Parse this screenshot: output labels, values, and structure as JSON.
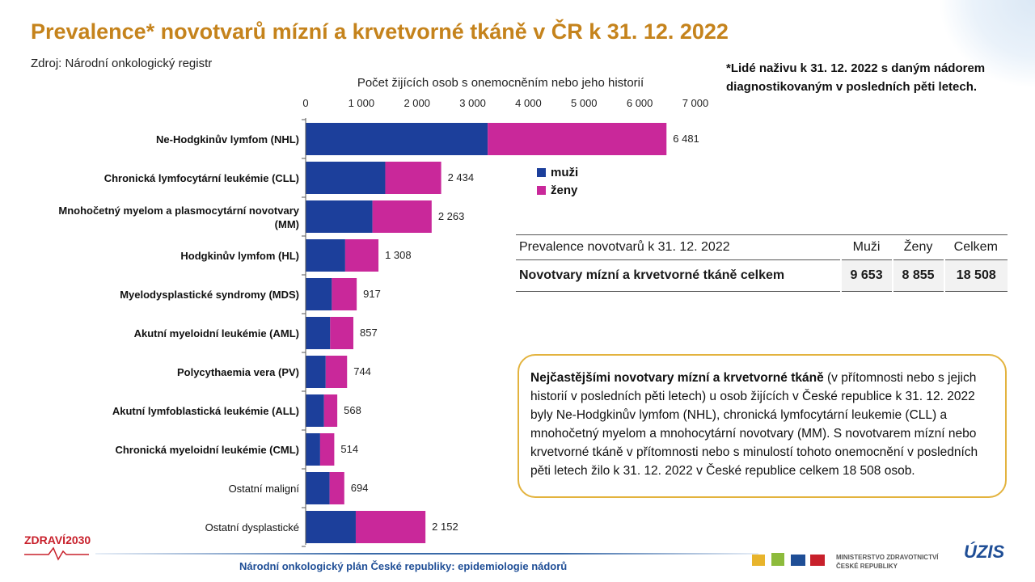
{
  "title": "Prevalence* novotvarů mízní a krvetvorné tkáně v ČR k 31. 12. 2022",
  "source": "Zdroj: Národní onkologický registr",
  "footnote": "*Lidé naživu k 31. 12. 2022 s daným nádorem diagnostikovaným v posledních pěti letech.",
  "chart_data": {
    "type": "bar",
    "orientation": "horizontal",
    "stacked": true,
    "title": "Počet žijících osob s onemocněním nebo jeho historií",
    "xlim": [
      0,
      7000
    ],
    "x_ticks": [
      "0",
      "1 000",
      "2 000",
      "3 000",
      "4 000",
      "5 000",
      "6 000",
      "7 000"
    ],
    "x_tick_values": [
      0,
      1000,
      2000,
      3000,
      4000,
      5000,
      6000,
      7000
    ],
    "categories": [
      "Ne-Hodgkinův lymfom (NHL)",
      "Chronická lymfocytární leukémie (CLL)",
      "Mnohočetný myelom a plasmocytární novotvary (MM)",
      "Hodgkinův lymfom (HL)",
      "Myelodysplastické syndromy (MDS)",
      "Akutní myeloidní leukémie (AML)",
      "Polycythaemia vera (PV)",
      "Akutní lymfoblastická leukémie (ALL)",
      "Chronická myeloidní leukémie (CML)",
      "Ostatní maligní",
      "Ostatní dysplastické"
    ],
    "category_bold": [
      true,
      true,
      true,
      true,
      true,
      true,
      true,
      true,
      true,
      false,
      false
    ],
    "series": [
      {
        "name": "muži",
        "color": "#1c3f9b",
        "values": [
          3270,
          1430,
          1200,
          710,
          470,
          440,
          360,
          330,
          260,
          430,
          900
        ]
      },
      {
        "name": "ženy",
        "color": "#c9289a",
        "values": [
          3211,
          1004,
          1063,
          598,
          447,
          417,
          384,
          238,
          254,
          264,
          1252
        ]
      }
    ],
    "totals": [
      6481,
      2434,
      2263,
      1308,
      917,
      857,
      744,
      568,
      514,
      694,
      2152
    ],
    "total_labels": [
      "6 481",
      "2 434",
      "2 263",
      "1 308",
      "917",
      "857",
      "744",
      "568",
      "514",
      "694",
      "2 152"
    ],
    "legend_position": "right"
  },
  "legend": {
    "male": "muži",
    "female": "ženy"
  },
  "summary_table": {
    "headers": [
      "Prevalence novotvarů k 31. 12. 2022",
      "Muži",
      "Ženy",
      "Celkem"
    ],
    "row_label": "Novotvary mízní a krvetvorné tkáně celkem",
    "values": [
      "9 653",
      "8 855",
      "18 508"
    ]
  },
  "callout": {
    "bold": "Nejčastějšími novotvary mízní a krvetvorné tkáně",
    "text": " (v přítomnosti nebo s jejich historií v posledních pěti letech) u osob žijících v České republice k 31. 12. 2022 byly Ne-Hodgkinův lymfom (NHL), chronická lymfocytární leukemie (CLL) a mnohočetný myelom a mnohocytární novotvary (MM). S novotvarem mízní nebo krvetvorné tkáně v přítomnosti nebo s minulostí tohoto onemocnění v posledních pěti letech žilo k 31. 12. 2022 v České republice celkem 18 508 osob."
  },
  "footer": "Národní onkologický plán České republiky: epidemiologie nádorů",
  "logos": {
    "zdravi_a": "ZDRAVÍ",
    "zdravi_b": "2030",
    "mz_line1": "MINISTERSTVO ZDRAVOTNICTVÍ",
    "mz_line2": "ČESKÉ REPUBLIKY",
    "uzis": "ÚZIS"
  }
}
